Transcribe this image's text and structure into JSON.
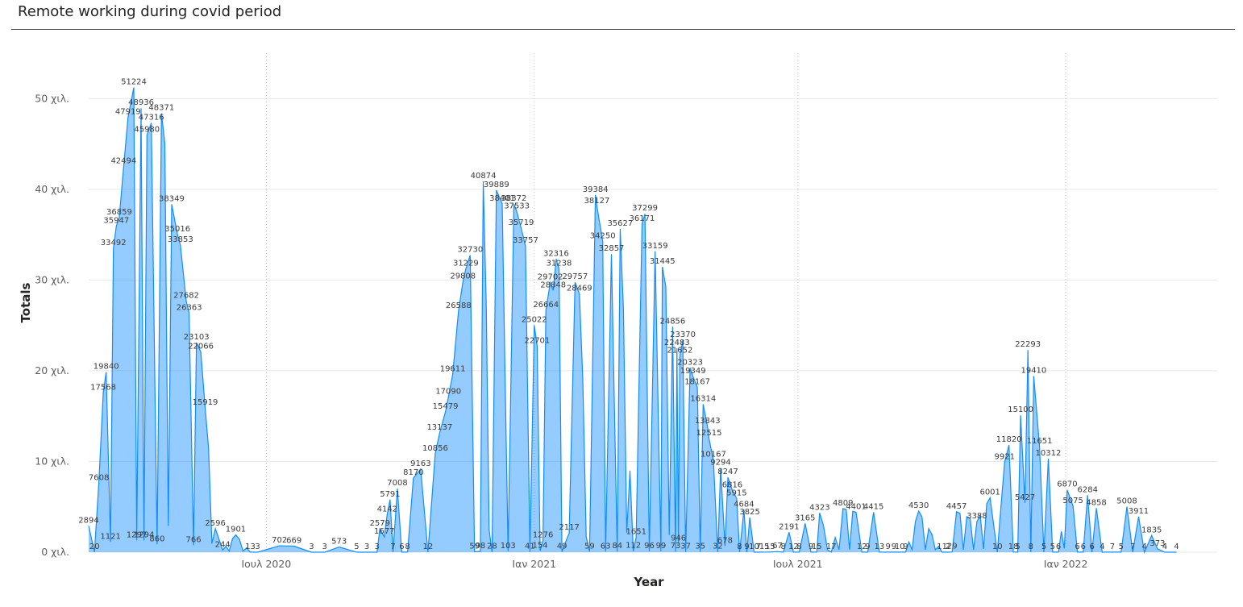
{
  "title": "Remote working during covid period",
  "chart_data": {
    "type": "area",
    "title": "Remote working during covid period",
    "xlabel": "Year",
    "ylabel": "Totals",
    "y_ticks": [
      "0 χιλ.",
      "10 χιλ.",
      "20 χιλ.",
      "30 χιλ.",
      "40 χιλ.",
      "50 χιλ."
    ],
    "y_tick_values": [
      0,
      10000,
      20000,
      30000,
      40000,
      50000
    ],
    "ylim": [
      0,
      55000
    ],
    "x_ticks": [
      {
        "date": "2020-07-01",
        "label": "Ιουλ 2020"
      },
      {
        "date": "2021-01-01",
        "label": "Ιαν 2021"
      },
      {
        "date": "2021-07-01",
        "label": "Ιουλ 2021"
      },
      {
        "date": "2022-01-01",
        "label": "Ιαν 2022"
      }
    ],
    "xlim": [
      "2020-03-01",
      "2022-04-15"
    ],
    "grid": {
      "horizontal": true,
      "vertical_dotted": true
    },
    "color": "#118DFF",
    "weekly_points": [
      {
        "x": "2020-03-01",
        "v": 2894
      },
      {
        "x": "2020-03-05",
        "v": 20
      },
      {
        "x": "2020-03-08",
        "v": 7608
      },
      {
        "x": "2020-03-11",
        "v": 17568
      },
      {
        "x": "2020-03-13",
        "v": 19840
      },
      {
        "x": "2020-03-16",
        "v": 1121
      },
      {
        "x": "2020-03-18",
        "v": 33492
      },
      {
        "x": "2020-03-20",
        "v": 35947
      },
      {
        "x": "2020-03-22",
        "v": 36859
      },
      {
        "x": "2020-03-25",
        "v": 42494
      },
      {
        "x": "2020-03-28",
        "v": 47919
      },
      {
        "x": "2020-04-01",
        "v": 51224
      },
      {
        "x": "2020-04-03",
        "v": 1297
      },
      {
        "x": "2020-04-06",
        "v": 48936
      },
      {
        "x": "2020-04-08",
        "v": 1294
      },
      {
        "x": "2020-04-10",
        "v": 45980
      },
      {
        "x": "2020-04-13",
        "v": 47316
      },
      {
        "x": "2020-04-17",
        "v": 860
      },
      {
        "x": "2020-04-20",
        "v": 48371
      },
      {
        "x": "2020-04-27",
        "v": 38349
      },
      {
        "x": "2020-05-01",
        "v": 35016
      },
      {
        "x": "2020-05-03",
        "v": 33853
      },
      {
        "x": "2020-05-07",
        "v": 27682
      },
      {
        "x": "2020-05-09",
        "v": 26363
      },
      {
        "x": "2020-05-12",
        "v": 766
      },
      {
        "x": "2020-05-14",
        "v": 23103
      },
      {
        "x": "2020-05-17",
        "v": 22066
      },
      {
        "x": "2020-05-20",
        "v": 15919
      },
      {
        "x": "2020-05-27",
        "v": 2596
      },
      {
        "x": "2020-06-01",
        "v": 244
      },
      {
        "x": "2020-06-10",
        "v": 1901
      },
      {
        "x": "2020-06-20",
        "v": 13
      },
      {
        "x": "2020-06-25",
        "v": 3
      },
      {
        "x": "2020-07-10",
        "v": 702
      },
      {
        "x": "2020-07-20",
        "v": 669
      },
      {
        "x": "2020-08-01",
        "v": 3
      },
      {
        "x": "2020-08-10",
        "v": 3
      },
      {
        "x": "2020-08-20",
        "v": 573
      },
      {
        "x": "2020-09-01",
        "v": 5
      },
      {
        "x": "2020-09-08",
        "v": 3
      },
      {
        "x": "2020-09-15",
        "v": 3
      },
      {
        "x": "2020-09-17",
        "v": 2579
      },
      {
        "x": "2020-09-20",
        "v": 1677
      },
      {
        "x": "2020-09-22",
        "v": 4142
      },
      {
        "x": "2020-09-24",
        "v": 5791
      },
      {
        "x": "2020-09-26",
        "v": 7
      },
      {
        "x": "2020-09-29",
        "v": 7008
      },
      {
        "x": "2020-10-02",
        "v": 6
      },
      {
        "x": "2020-10-06",
        "v": 8
      },
      {
        "x": "2020-10-10",
        "v": 8170
      },
      {
        "x": "2020-10-15",
        "v": 9163
      },
      {
        "x": "2020-10-20",
        "v": 12
      },
      {
        "x": "2020-10-25",
        "v": 10856
      },
      {
        "x": "2020-10-28",
        "v": 13137
      },
      {
        "x": "2020-11-01",
        "v": 15479
      },
      {
        "x": "2020-11-03",
        "v": 17090
      },
      {
        "x": "2020-11-06",
        "v": 19611
      },
      {
        "x": "2020-11-10",
        "v": 26588
      },
      {
        "x": "2020-11-13",
        "v": 29808
      },
      {
        "x": "2020-11-15",
        "v": 31229
      },
      {
        "x": "2020-11-18",
        "v": 32730
      },
      {
        "x": "2020-11-21",
        "v": 59
      },
      {
        "x": "2020-11-25",
        "v": 98
      },
      {
        "x": "2020-11-27",
        "v": 40874
      },
      {
        "x": "2020-12-03",
        "v": 28
      },
      {
        "x": "2020-12-06",
        "v": 39889
      },
      {
        "x": "2020-12-10",
        "v": 38401
      },
      {
        "x": "2020-12-14",
        "v": 103
      },
      {
        "x": "2020-12-18",
        "v": 38372
      },
      {
        "x": "2020-12-20",
        "v": 37533
      },
      {
        "x": "2020-12-23",
        "v": 35719
      },
      {
        "x": "2020-12-26",
        "v": 33757
      },
      {
        "x": "2020-12-29",
        "v": 41
      },
      {
        "x": "2021-01-01",
        "v": 25022
      },
      {
        "x": "2021-01-03",
        "v": 22701
      },
      {
        "x": "2021-01-05",
        "v": 154
      },
      {
        "x": "2021-01-07",
        "v": 1276
      },
      {
        "x": "2021-01-09",
        "v": 26664
      },
      {
        "x": "2021-01-12",
        "v": 29702
      },
      {
        "x": "2021-01-14",
        "v": 28848
      },
      {
        "x": "2021-01-16",
        "v": 32316
      },
      {
        "x": "2021-01-18",
        "v": 31238
      },
      {
        "x": "2021-01-20",
        "v": 49
      },
      {
        "x": "2021-01-25",
        "v": 2117
      },
      {
        "x": "2021-01-29",
        "v": 29757
      },
      {
        "x": "2021-02-01",
        "v": 28469
      },
      {
        "x": "2021-02-08",
        "v": 59
      },
      {
        "x": "2021-02-12",
        "v": 39384
      },
      {
        "x": "2021-02-13",
        "v": 38127
      },
      {
        "x": "2021-02-17",
        "v": 34250
      },
      {
        "x": "2021-02-19",
        "v": 63
      },
      {
        "x": "2021-02-23",
        "v": 32857
      },
      {
        "x": "2021-02-27",
        "v": 84
      },
      {
        "x": "2021-03-01",
        "v": 35627
      },
      {
        "x": "2021-03-10",
        "v": 112
      },
      {
        "x": "2021-03-12",
        "v": 1651
      },
      {
        "x": "2021-03-16",
        "v": 36171
      },
      {
        "x": "2021-03-18",
        "v": 37299
      },
      {
        "x": "2021-03-21",
        "v": 96
      },
      {
        "x": "2021-03-25",
        "v": 33159
      },
      {
        "x": "2021-03-29",
        "v": 99
      },
      {
        "x": "2021-03-30",
        "v": 31445
      },
      {
        "x": "2021-04-06",
        "v": 24856
      },
      {
        "x": "2021-04-08",
        "v": 73
      },
      {
        "x": "2021-04-09",
        "v": 22483
      },
      {
        "x": "2021-04-10",
        "v": 946
      },
      {
        "x": "2021-04-11",
        "v": 21652
      },
      {
        "x": "2021-04-13",
        "v": 23370
      },
      {
        "x": "2021-04-15",
        "v": 37
      },
      {
        "x": "2021-04-18",
        "v": 20323
      },
      {
        "x": "2021-04-20",
        "v": 19349
      },
      {
        "x": "2021-04-23",
        "v": 18167
      },
      {
        "x": "2021-04-25",
        "v": 35
      },
      {
        "x": "2021-04-27",
        "v": 16314
      },
      {
        "x": "2021-04-30",
        "v": 13843
      },
      {
        "x": "2021-05-01",
        "v": 12515
      },
      {
        "x": "2021-05-04",
        "v": 10167
      },
      {
        "x": "2021-05-07",
        "v": 32
      },
      {
        "x": "2021-05-09",
        "v": 9294
      },
      {
        "x": "2021-05-12",
        "v": 678
      },
      {
        "x": "2021-05-14",
        "v": 8247
      },
      {
        "x": "2021-05-17",
        "v": 6816
      },
      {
        "x": "2021-05-20",
        "v": 5915
      },
      {
        "x": "2021-05-22",
        "v": 8
      },
      {
        "x": "2021-05-25",
        "v": 4684
      },
      {
        "x": "2021-05-27",
        "v": 9
      },
      {
        "x": "2021-05-29",
        "v": 3825
      },
      {
        "x": "2021-06-01",
        "v": 10
      },
      {
        "x": "2021-06-04",
        "v": 7
      },
      {
        "x": "2021-06-08",
        "v": 15
      },
      {
        "x": "2021-06-12",
        "v": 15
      },
      {
        "x": "2021-06-17",
        "v": 67
      },
      {
        "x": "2021-06-21",
        "v": 8
      },
      {
        "x": "2021-06-25",
        "v": 2191
      },
      {
        "x": "2021-06-28",
        "v": 12
      },
      {
        "x": "2021-07-02",
        "v": 8
      },
      {
        "x": "2021-07-06",
        "v": 3165
      },
      {
        "x": "2021-07-10",
        "v": 9
      },
      {
        "x": "2021-07-14",
        "v": 15
      },
      {
        "x": "2021-07-16",
        "v": 4323
      },
      {
        "x": "2021-07-24",
        "v": 17
      },
      {
        "x": "2021-08-01",
        "v": 4809
      },
      {
        "x": "2021-08-10",
        "v": 4401
      },
      {
        "x": "2021-08-14",
        "v": 12
      },
      {
        "x": "2021-08-18",
        "v": 9
      },
      {
        "x": "2021-08-22",
        "v": 4415
      },
      {
        "x": "2021-08-26",
        "v": 13
      },
      {
        "x": "2021-09-01",
        "v": 9
      },
      {
        "x": "2021-09-05",
        "v": 9
      },
      {
        "x": "2021-09-09",
        "v": 10
      },
      {
        "x": "2021-09-13",
        "v": 9
      },
      {
        "x": "2021-09-22",
        "v": 4530
      },
      {
        "x": "2021-10-08",
        "v": 11
      },
      {
        "x": "2021-10-12",
        "v": 2
      },
      {
        "x": "2021-10-15",
        "v": 29
      },
      {
        "x": "2021-10-18",
        "v": 4457
      },
      {
        "x": "2021-11-01",
        "v": 3388
      },
      {
        "x": "2021-11-10",
        "v": 6001
      },
      {
        "x": "2021-11-15",
        "v": 10
      },
      {
        "x": "2021-11-20",
        "v": 9921
      },
      {
        "x": "2021-11-23",
        "v": 11820
      },
      {
        "x": "2021-11-26",
        "v": 18
      },
      {
        "x": "2021-11-29",
        "v": 5
      },
      {
        "x": "2021-12-01",
        "v": 15100
      },
      {
        "x": "2021-12-04",
        "v": 5427
      },
      {
        "x": "2021-12-06",
        "v": 22293
      },
      {
        "x": "2021-12-08",
        "v": 8
      },
      {
        "x": "2021-12-10",
        "v": 19410
      },
      {
        "x": "2021-12-14",
        "v": 11651
      },
      {
        "x": "2021-12-17",
        "v": 5
      },
      {
        "x": "2021-12-20",
        "v": 10312
      },
      {
        "x": "2021-12-23",
        "v": 5
      },
      {
        "x": "2021-12-27",
        "v": 6
      },
      {
        "x": "2022-01-02",
        "v": 6870
      },
      {
        "x": "2022-01-06",
        "v": 5075
      },
      {
        "x": "2022-01-09",
        "v": 6
      },
      {
        "x": "2022-01-13",
        "v": 6
      },
      {
        "x": "2022-01-16",
        "v": 6284
      },
      {
        "x": "2022-01-19",
        "v": 6
      },
      {
        "x": "2022-01-22",
        "v": 4858
      },
      {
        "x": "2022-01-26",
        "v": 4
      },
      {
        "x": "2022-02-02",
        "v": 7
      },
      {
        "x": "2022-02-08",
        "v": 5
      },
      {
        "x": "2022-02-12",
        "v": 5008
      },
      {
        "x": "2022-02-16",
        "v": 7
      },
      {
        "x": "2022-02-20",
        "v": 3911
      },
      {
        "x": "2022-02-24",
        "v": 4
      },
      {
        "x": "2022-03-01",
        "v": 1835
      },
      {
        "x": "2022-03-05",
        "v": 373
      },
      {
        "x": "2022-03-10",
        "v": 4
      },
      {
        "x": "2022-03-18",
        "v": 4
      }
    ]
  }
}
